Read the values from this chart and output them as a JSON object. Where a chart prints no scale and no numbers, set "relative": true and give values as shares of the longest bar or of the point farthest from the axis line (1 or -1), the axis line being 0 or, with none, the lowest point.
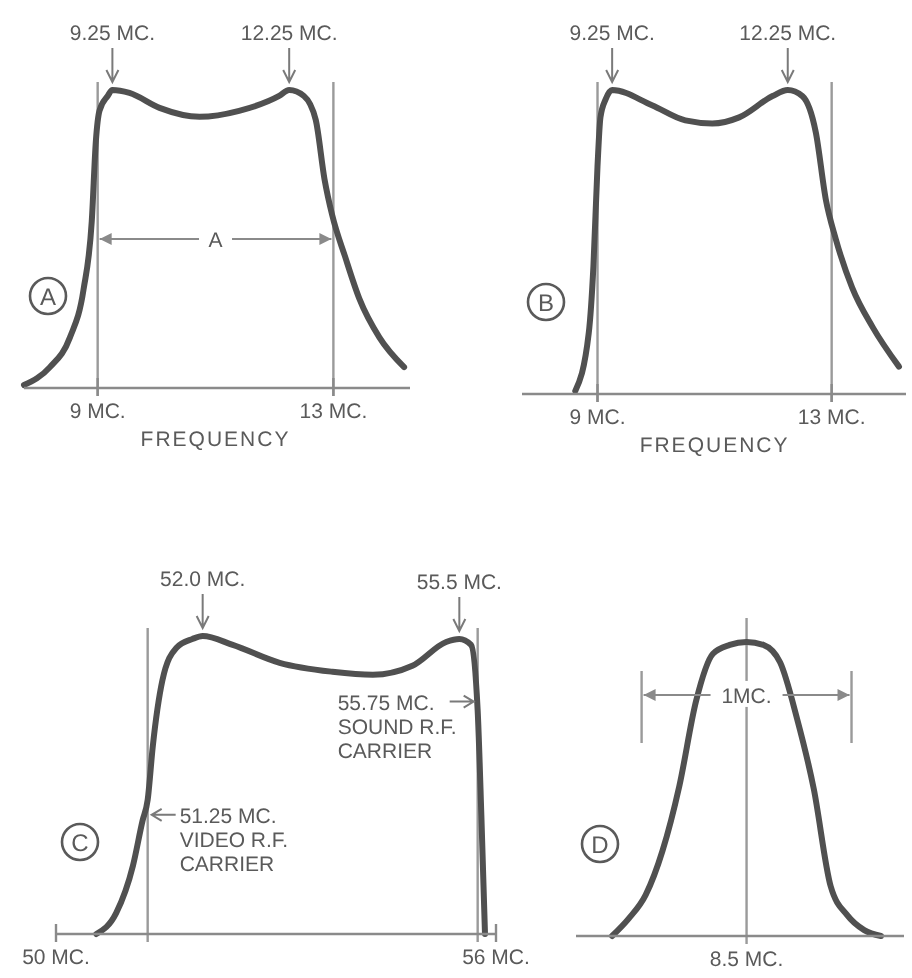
{
  "chart_data": [
    {
      "type": "line",
      "relative": true,
      "color": "#505050",
      "xlim": [
        7.75,
        14.3
      ],
      "xticks": [
        {
          "value": 9,
          "label": "9 MC."
        },
        {
          "value": 13,
          "label": "13 MC."
        }
      ],
      "xlabel": "FREQUENCY",
      "x": [
        7.75,
        8.19,
        8.53,
        8.76,
        8.9,
        8.97,
        9.03,
        9.17,
        9.25,
        9.54,
        10.05,
        10.73,
        11.4,
        12.08,
        12.25,
        12.5,
        12.7,
        12.85,
        12.98,
        13.2,
        13.44,
        13.78,
        14.2
      ],
      "values": [
        0.01,
        0.07,
        0.17,
        0.33,
        0.56,
        0.83,
        0.93,
        0.98,
        1,
        0.99,
        0.94,
        0.91,
        0.93,
        0.98,
        1,
        0.98,
        0.9,
        0.7,
        0.58,
        0.44,
        0.3,
        0.17,
        0.07
      ],
      "ref_lines": [
        {
          "axis": "x",
          "value": 9
        },
        {
          "axis": "x",
          "value": 13
        }
      ],
      "annotations": [
        "A",
        "A",
        {
          "text": "9.25 MC.",
          "x": 9.25,
          "y": 1
        },
        {
          "text": "12.25 MC.",
          "x": 12.25,
          "y": 1
        }
      ]
    },
    {
      "type": "line",
      "relative": true,
      "color": "#505050",
      "xlim": [
        7.71,
        14.27
      ],
      "xticks": [
        {
          "value": 9,
          "label": "9 MC."
        },
        {
          "value": 13,
          "label": "13 MC."
        }
      ],
      "xlabel": "FREQUENCY",
      "x": [
        8.62,
        8.85,
        8.93,
        9.0,
        9.05,
        9.14,
        9.25,
        9.93,
        10.5,
        10.96,
        11.42,
        11.99,
        12.25,
        12.5,
        12.73,
        12.9,
        13.07,
        13.35,
        13.7,
        14.15
      ],
      "values": [
        0.01,
        0.2,
        0.42,
        0.75,
        0.91,
        0.97,
        1,
        0.95,
        0.9,
        0.89,
        0.91,
        0.98,
        1,
        0.98,
        0.86,
        0.64,
        0.51,
        0.35,
        0.22,
        0.09
      ],
      "ref_lines": [
        {
          "axis": "x",
          "value": 9
        },
        {
          "axis": "x",
          "value": 13
        }
      ],
      "annotations": [
        "B",
        {
          "text": "9.25 MC.",
          "x": 9.25,
          "y": 1
        },
        {
          "text": "12.25 MC.",
          "x": 12.25,
          "y": 1
        }
      ]
    },
    {
      "type": "line",
      "relative": true,
      "color": "#505050",
      "xlim": [
        50,
        56
      ],
      "xticks": [
        {
          "value": 50,
          "label": "50 MC."
        },
        {
          "value": 56,
          "label": "56 MC."
        }
      ],
      "x": [
        50.55,
        50.82,
        51.05,
        51.18,
        51.25,
        51.32,
        51.45,
        51.64,
        51.86,
        52.0,
        52.41,
        53.05,
        53.77,
        54.32,
        54.86,
        55.32,
        55.5,
        55.66,
        55.75,
        55.8,
        55.85
      ],
      "values": [
        0,
        0.07,
        0.23,
        0.38,
        0.45,
        0.63,
        0.85,
        0.96,
        0.99,
        1,
        0.97,
        0.91,
        0.88,
        0.87,
        0.9,
        0.98,
        0.99,
        0.97,
        0.75,
        0.4,
        0
      ],
      "ref_lines": [
        {
          "axis": "x",
          "value": 51.25
        },
        {
          "axis": "x",
          "value": 55.75
        }
      ],
      "annotations": [
        "C",
        {
          "text": "52.0 MC.",
          "x": 52.0,
          "y": 1
        },
        {
          "text": "55.5 MC.",
          "x": 55.5,
          "y": 0.99
        },
        {
          "text": "51.25 MC.\nVIDEO R.F.\nCARRIER",
          "x": 51.25,
          "y": 0.4
        },
        {
          "text": "55.75 MC.\nSOUND R.F.\nCARRIER",
          "x": 55.75,
          "y": 0.78
        }
      ]
    },
    {
      "type": "line",
      "relative": true,
      "color": "#505050",
      "categories": [
        null,
        null,
        null,
        null,
        null,
        null,
        null,
        null,
        null,
        null,
        null,
        null,
        null,
        null,
        null,
        null,
        null
      ],
      "values": [
        0,
        0.06,
        0.14,
        0.29,
        0.51,
        0.8,
        0.96,
        0.99,
        1,
        0.99,
        0.93,
        0.74,
        0.5,
        0.17,
        0.07,
        0.02,
        0
      ],
      "annotations": [
        "D",
        "1MC.",
        "8.5 MC."
      ]
    }
  ]
}
